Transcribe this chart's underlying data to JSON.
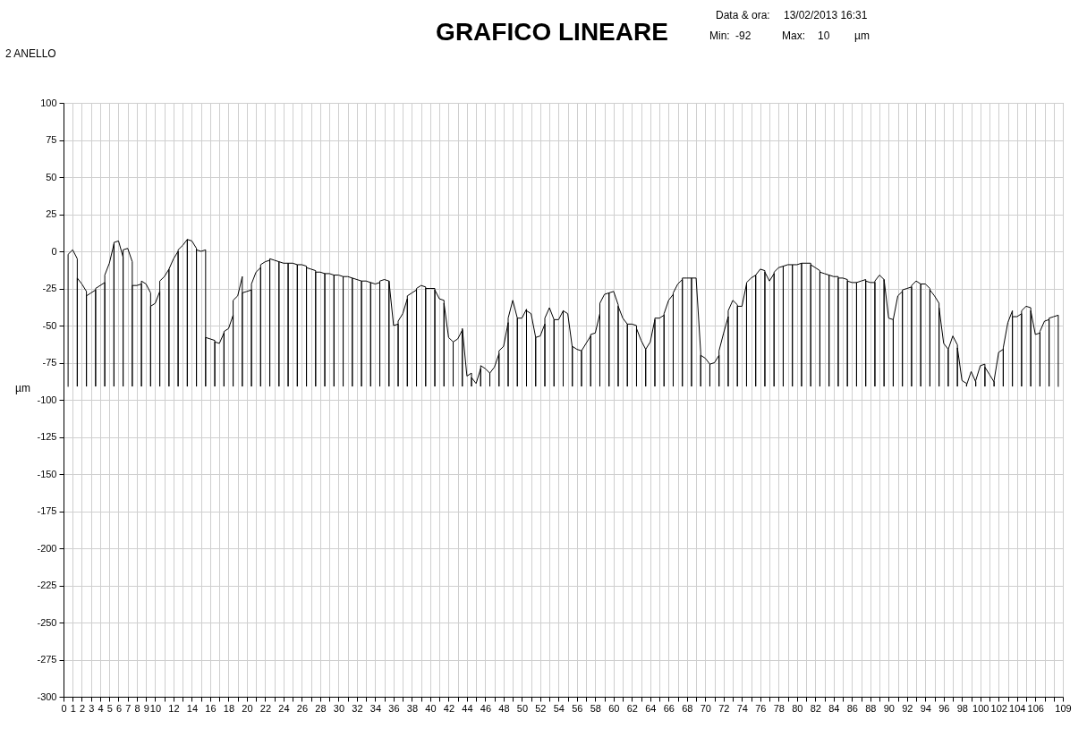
{
  "chart_data": {
    "type": "line",
    "title": "GRAFICO LINEARE",
    "ylabel": "µm",
    "annotations": [
      "2 ANELLO",
      "Data & ora:",
      "13/02/2013 16:31",
      "Min:",
      "-92",
      "Max:",
      "10",
      "µm"
    ],
    "xlim": [
      0,
      109
    ],
    "ylim": [
      -300,
      100
    ],
    "xticks": [
      0,
      1,
      2,
      3,
      4,
      5,
      6,
      7,
      8,
      9,
      10,
      {
        "value": 11,
        "label": null
      },
      12,
      {
        "value": 13,
        "label": null
      },
      14,
      {
        "value": 15,
        "label": null
      },
      16,
      {
        "value": 17,
        "label": null
      },
      18,
      {
        "value": 19,
        "label": null
      },
      20,
      {
        "value": 21,
        "label": null
      },
      22,
      {
        "value": 23,
        "label": null
      },
      24,
      {
        "value": 25,
        "label": null
      },
      26,
      {
        "value": 27,
        "label": null
      },
      28,
      {
        "value": 29,
        "label": null
      },
      30,
      {
        "value": 31,
        "label": null
      },
      32,
      {
        "value": 33,
        "label": null
      },
      34,
      {
        "value": 35,
        "label": null
      },
      36,
      {
        "value": 37,
        "label": null
      },
      38,
      {
        "value": 39,
        "label": null
      },
      40,
      {
        "value": 41,
        "label": null
      },
      42,
      {
        "value": 43,
        "label": null
      },
      44,
      {
        "value": 45,
        "label": null
      },
      46,
      {
        "value": 47,
        "label": null
      },
      48,
      {
        "value": 49,
        "label": null
      },
      50,
      {
        "value": 51,
        "label": null
      },
      52,
      {
        "value": 53,
        "label": null
      },
      54,
      {
        "value": 55,
        "label": null
      },
      56,
      {
        "value": 57,
        "label": null
      },
      58,
      {
        "value": 59,
        "label": null
      },
      60,
      {
        "value": 61,
        "label": null
      },
      62,
      {
        "value": 63,
        "label": null
      },
      64,
      {
        "value": 65,
        "label": null
      },
      66,
      {
        "value": 67,
        "label": null
      },
      68,
      {
        "value": 69,
        "label": null
      },
      70,
      {
        "value": 71,
        "label": null
      },
      72,
      {
        "value": 73,
        "label": null
      },
      74,
      {
        "value": 75,
        "label": null
      },
      76,
      {
        "value": 77,
        "label": null
      },
      78,
      {
        "value": 79,
        "label": null
      },
      80,
      {
        "value": 81,
        "label": null
      },
      82,
      {
        "value": 83,
        "label": null
      },
      84,
      {
        "value": 85,
        "label": null
      },
      86,
      {
        "value": 87,
        "label": null
      },
      88,
      {
        "value": 89,
        "label": null
      },
      90,
      {
        "value": 91,
        "label": null
      },
      92,
      {
        "value": 93,
        "label": null
      },
      94,
      {
        "value": 95,
        "label": null
      },
      96,
      {
        "value": 97,
        "label": null
      },
      98,
      {
        "value": 99,
        "label": null
      },
      100,
      {
        "value": 101,
        "label": null
      },
      102,
      {
        "value": 103,
        "label": null
      },
      104,
      {
        "value": 105,
        "label": null
      },
      106,
      {
        "value": 107,
        "label": null
      },
      {
        "value": 108,
        "label": null
      },
      109
    ],
    "yticks": [
      -300,
      -275,
      -250,
      -225,
      -200,
      -175,
      -150,
      -125,
      -100,
      -75,
      -50,
      -25,
      0,
      25,
      50,
      75,
      100
    ],
    "grid": true,
    "series": [
      {
        "color": "#000000",
        "x": [
          0.5,
          0.5,
          1,
          1.5,
          1.5,
          1.5,
          2,
          2.5,
          2.5,
          2.5,
          3,
          3.5,
          3.5,
          3.5,
          4,
          4.5,
          4.5,
          4.5,
          5,
          5.5,
          5.5,
          5.5,
          6,
          6.5,
          6.5,
          6.5,
          7,
          7.5,
          7.5,
          7.5,
          8,
          8.5,
          8.5,
          8.5,
          9,
          9.5,
          9.5,
          9.5,
          10,
          10.5,
          10.5,
          10.5,
          11,
          11.5,
          11.5,
          11.5,
          12,
          12.5,
          12.5,
          12.5,
          13,
          13.5,
          13.5,
          13.5,
          14,
          14.5,
          14.5,
          14.5,
          15,
          15.5,
          15.5,
          15.5,
          16,
          16.5,
          16.5,
          16.5,
          17,
          17.5,
          17.5,
          17.5,
          18,
          18.5,
          18.5,
          18.5,
          19,
          19.5,
          19.5,
          19.5,
          20,
          20.5,
          20.5,
          20.5,
          21,
          21.5,
          21.5,
          21.5,
          22,
          22.5,
          22.5,
          22.5,
          23,
          23.5,
          23.5,
          23.5,
          24,
          24.5,
          24.5,
          24.5,
          25,
          25.5,
          25.5,
          25.5,
          26,
          26.5,
          26.5,
          26.5,
          27,
          27.5,
          27.5,
          27.5,
          28,
          28.5,
          28.5,
          28.5,
          29,
          29.5,
          29.5,
          29.5,
          30,
          30.5,
          30.5,
          30.5,
          31,
          31.5,
          31.5,
          31.5,
          32,
          32.5,
          32.5,
          32.5,
          33,
          33.5,
          33.5,
          33.5,
          34,
          34.5,
          34.5,
          34.5,
          35,
          35.5,
          35.5,
          35.5,
          36,
          36.5,
          36.5,
          36.5,
          37,
          37.5,
          37.5,
          37.5,
          38,
          38.5,
          38.5,
          38.5,
          39,
          39.5,
          39.5,
          39.5,
          40,
          40.5,
          40.5,
          40.5,
          41,
          41.5,
          41.5,
          41.5,
          42,
          42.5,
          42.5,
          42.5,
          43,
          43.5,
          43.5,
          43.5,
          44,
          44.5,
          44.5,
          44.5,
          45,
          45.5,
          45.5,
          45.5,
          46,
          46.5,
          46.5,
          46.5,
          47,
          47.5,
          47.5,
          47.5,
          48,
          48.5,
          48.5,
          48.5,
          49,
          49.5,
          49.5,
          49.5,
          50,
          50.5,
          50.5,
          50.5,
          51,
          51.5,
          51.5,
          51.5,
          52,
          52.5,
          52.5,
          52.5,
          53,
          53.5,
          53.5,
          53.5,
          54,
          54.5,
          54.5,
          54.5,
          55,
          55.5,
          55.5,
          55.5,
          56,
          56.5,
          56.5,
          56.5,
          57,
          57.5,
          57.5,
          57.5,
          58,
          58.5,
          58.5,
          58.5,
          59,
          59.5,
          59.5,
          59.5,
          60,
          60.5,
          60.5,
          60.5,
          61,
          61.5,
          61.5,
          61.5,
          62,
          62.5,
          62.5,
          62.5,
          63,
          63.5,
          63.5,
          63.5,
          64,
          64.5,
          64.5,
          64.5,
          65,
          65.5,
          65.5,
          65.5,
          66,
          66.5,
          66.5,
          66.5,
          67,
          67.5,
          67.5,
          67.5,
          68,
          68.5,
          68.5,
          68.5,
          69,
          69.5,
          69.5,
          69.5,
          70,
          70.5,
          70.5,
          70.5,
          71,
          71.5,
          71.5,
          71.5,
          72,
          72.5,
          72.5,
          72.5,
          73,
          73.5,
          73.5,
          73.5,
          74,
          74.5,
          74.5,
          74.5,
          75,
          75.5,
          75.5,
          75.5,
          76,
          76.5,
          76.5,
          76.5,
          77,
          77.5,
          77.5,
          77.5,
          78,
          78.5,
          78.5,
          78.5,
          79,
          79.5,
          79.5,
          79.5,
          80,
          80.5,
          80.5,
          80.5,
          81,
          81.5,
          81.5,
          81.5,
          82,
          82.5,
          82.5,
          82.5,
          83,
          83.5,
          83.5,
          83.5,
          84,
          84.5,
          84.5,
          84.5,
          85,
          85.5,
          85.5,
          85.5,
          86,
          86.5,
          86.5,
          86.5,
          87,
          87.5,
          87.5,
          87.5,
          88,
          88.5,
          88.5,
          88.5,
          89,
          89.5,
          89.5,
          89.5,
          90,
          90.5,
          90.5,
          90.5,
          91,
          91.5,
          91.5,
          91.5,
          92,
          92.5,
          92.5,
          92.5,
          93,
          93.5,
          93.5,
          93.5,
          94,
          94.5,
          94.5,
          94.5,
          95,
          95.5,
          95.5,
          95.5,
          96,
          96.5,
          96.5,
          96.5,
          97,
          97.5,
          97.5,
          97.5,
          98,
          98.5,
          98.5,
          98.5,
          99,
          99.5,
          99.5,
          99.5,
          100,
          100.5,
          100.5,
          100.5,
          101,
          101.5,
          101.5,
          101.5,
          102,
          102.5,
          102.5,
          102.5,
          103,
          103.5,
          103.5,
          103.5,
          104,
          104.5,
          104.5,
          104.5,
          105,
          105.5,
          105.5,
          105.5,
          106,
          106.5,
          106.5,
          106.5,
          107,
          107.5,
          107.5,
          107.5,
          108,
          108.5,
          108.5
        ],
        "values": [
          -91,
          -2,
          1,
          -5,
          -91,
          -18,
          -22,
          -27,
          -91,
          -30,
          -28,
          -26,
          -91,
          -25,
          -23,
          -21,
          -91,
          -16,
          -8,
          5,
          -91,
          6,
          7,
          -4,
          -91,
          1,
          2,
          -7,
          -91,
          -23,
          -23,
          -22,
          -91,
          -20,
          -22,
          -28,
          -91,
          -37,
          -35,
          -27,
          -91,
          -20,
          -17,
          -12,
          -91,
          -12,
          -5,
          0,
          -91,
          1,
          4,
          8,
          -91,
          8,
          7,
          2,
          -91,
          1,
          0,
          1,
          -91,
          -58,
          -59,
          -60,
          -91,
          -61,
          -62,
          -55,
          -91,
          -54,
          -52,
          -43,
          -91,
          -33,
          -30,
          -17,
          -91,
          -28,
          -27,
          -26,
          -91,
          -22,
          -14,
          -11,
          -91,
          -9,
          -7,
          -6,
          -91,
          -5,
          -6,
          -7,
          -91,
          -7,
          -8,
          -8,
          -91,
          -8,
          -8,
          -9,
          -91,
          -9,
          -9,
          -10,
          -91,
          -11,
          -12,
          -13,
          -91,
          -14,
          -14,
          -15,
          -91,
          -15,
          -15,
          -16,
          -91,
          -16,
          -16,
          -17,
          -91,
          -17,
          -17,
          -18,
          -91,
          -18,
          -19,
          -20,
          -91,
          -20,
          -20,
          -21,
          -91,
          -21,
          -22,
          -21,
          -91,
          -20,
          -19,
          -20,
          -91,
          -20,
          -50,
          -49,
          -91,
          -47,
          -42,
          -32,
          -91,
          -30,
          -28,
          -26,
          -91,
          -25,
          -23,
          -24,
          -91,
          -25,
          -25,
          -25,
          -91,
          -26,
          -32,
          -33,
          -91,
          -35,
          -58,
          -61,
          -91,
          -61,
          -59,
          -53,
          -91,
          -52,
          -84,
          -82,
          -91,
          -85,
          -89,
          -79,
          -91,
          -77,
          -79,
          -82,
          -91,
          -82,
          -78,
          -69,
          -91,
          -67,
          -64,
          -48,
          -91,
          -45,
          -33,
          -45,
          -91,
          -45,
          -45,
          -39,
          -91,
          -40,
          -42,
          -58,
          -91,
          -58,
          -57,
          -49,
          -91,
          -45,
          -38,
          -46,
          -91,
          -46,
          -46,
          -40,
          -91,
          -40,
          -42,
          -65,
          -91,
          -64,
          -66,
          -67,
          -91,
          -67,
          -62,
          -57,
          -91,
          -56,
          -55,
          -42,
          -91,
          -35,
          -29,
          -28,
          -91,
          -28,
          -27,
          -36,
          -91,
          -37,
          -45,
          -49,
          -91,
          -49,
          -49,
          -50,
          -91,
          -52,
          -60,
          -66,
          -91,
          -66,
          -61,
          -46,
          -91,
          -45,
          -45,
          -43,
          -91,
          -42,
          -33,
          -29,
          -91,
          -28,
          -22,
          -19,
          -91,
          -18,
          -18,
          -18,
          -91,
          -18,
          -18,
          -68,
          -91,
          -70,
          -72,
          -76,
          -91,
          -76,
          -75,
          -70,
          -91,
          -67,
          -55,
          -44,
          -91,
          -40,
          -33,
          -36,
          -91,
          -37,
          -37,
          -22,
          -91,
          -21,
          -18,
          -16,
          -91,
          -16,
          -12,
          -13,
          -91,
          -14,
          -20,
          -15,
          -91,
          -14,
          -11,
          -10,
          -91,
          -10,
          -9,
          -9,
          -91,
          -9,
          -9,
          -8,
          -91,
          -8,
          -8,
          -8,
          -91,
          -9,
          -11,
          -13,
          -91,
          -14,
          -15,
          -16,
          -91,
          -16,
          -17,
          -17,
          -91,
          -18,
          -18,
          -19,
          -91,
          -20,
          -21,
          -21,
          -91,
          -21,
          -20,
          -19,
          -91,
          -20,
          -21,
          -21,
          -91,
          -20,
          -16,
          -19,
          -91,
          -19,
          -45,
          -46,
          -91,
          -46,
          -30,
          -27,
          -91,
          -26,
          -25,
          -24,
          -91,
          -23,
          -20,
          -22,
          -91,
          -22,
          -22,
          -25,
          -91,
          -26,
          -30,
          -35,
          -91,
          -38,
          -62,
          -66,
          -91,
          -66,
          -57,
          -63,
          -91,
          -65,
          -87,
          -89,
          -91,
          -90,
          -81,
          -88,
          -91,
          -87,
          -77,
          -76,
          -91,
          -78,
          -83,
          -88,
          -91,
          -87,
          -68,
          -66,
          -91,
          -65,
          -48,
          -40,
          -91,
          -44,
          -44,
          -42,
          -91,
          -40,
          -37,
          -38,
          -91,
          -40,
          -56,
          -55,
          -91,
          -54,
          -47,
          -46,
          -91,
          -45,
          -44,
          -43,
          -91
        ]
      }
    ]
  }
}
